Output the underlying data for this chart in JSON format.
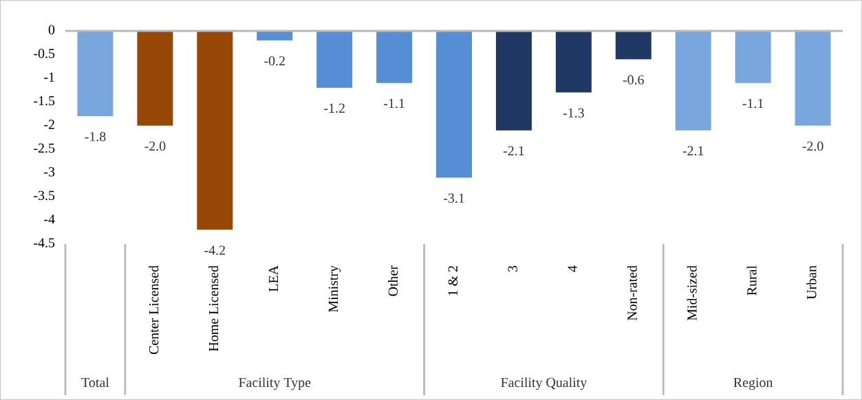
{
  "chart_data": {
    "type": "bar",
    "categories": [
      null,
      "Center Licensed",
      "Home Licensed",
      "LEA",
      "Ministry",
      "Other",
      "1 & 2",
      "3",
      "4",
      "Non-rated",
      "Mid-sized",
      "Rural",
      "Urban"
    ],
    "values": [
      -1.8,
      -2.0,
      -4.2,
      -0.2,
      -1.2,
      -1.1,
      -3.1,
      -2.1,
      -1.3,
      -0.6,
      -2.1,
      -1.1,
      -2.0
    ],
    "value_labels": [
      "-1.8",
      "-2.0",
      "-4.2",
      "-0.2",
      "-1.2",
      "-1.1",
      "-3.1",
      "-2.1",
      "-1.3",
      "-0.6",
      "-2.1",
      "-1.1",
      "-2.0"
    ],
    "colors": [
      "#7aa6de",
      "#974706",
      "#974706",
      "#558ed5",
      "#558ed5",
      "#558ed5",
      "#558ed5",
      "#1f3864",
      "#1f3864",
      "#1f3864",
      "#7aa6de",
      "#7aa6de",
      "#7aa6de"
    ],
    "ylim": [
      -4.5,
      0
    ],
    "yticks": [
      0,
      -0.5,
      -1,
      -1.5,
      -2,
      -2.5,
      -3,
      -3.5,
      -4,
      -4.5
    ],
    "grid": false,
    "annotations": [
      "Total",
      "Facility Type",
      "Facility Quality",
      "Region"
    ]
  }
}
